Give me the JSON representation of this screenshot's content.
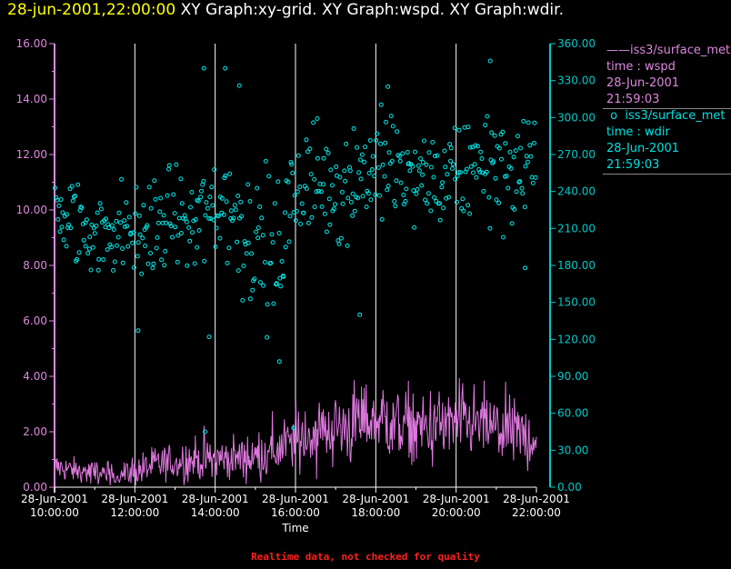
{
  "header": {
    "timestamp": "28-jun-2001,22:00:00",
    "graphs": "XY Graph:xy-grid.  XY Graph:wspd.  XY Graph:wdir."
  },
  "legend": {
    "wspd": {
      "name": "iss3/surface_met",
      "field": "time : wspd",
      "date": "28-Jun-2001",
      "time": "21:59:03"
    },
    "wdir": {
      "name": "iss3/surface_met",
      "field": "time : wdir",
      "date": "28-Jun-2001",
      "time": "21:59:03"
    }
  },
  "footer": {
    "note": "Realtime data, not checked for quality"
  },
  "colors": {
    "wspd": "#dd77dd",
    "wdir": "#00e8e8",
    "left_axis": "#dd88dd",
    "right_axis": "#00c8c8",
    "grid": "#ffffff"
  },
  "chart_data": {
    "type": "line",
    "xlabel": "Time",
    "x_ticks": [
      {
        "date": "28-Jun-2001",
        "time": "10:00:00"
      },
      {
        "date": "28-Jun-2001",
        "time": "12:00:00"
      },
      {
        "date": "28-Jun-2001",
        "time": "14:00:00"
      },
      {
        "date": "28-Jun-2001",
        "time": "16:00:00"
      },
      {
        "date": "28-Jun-2001",
        "time": "18:00:00"
      },
      {
        "date": "28-Jun-2001",
        "time": "20:00:00"
      },
      {
        "date": "28-Jun-2001",
        "time": "22:00:00"
      }
    ],
    "xlim_hours": [
      10,
      22
    ],
    "grid_vertical": true,
    "y_left": {
      "series": "wspd",
      "ylim": [
        0,
        16
      ],
      "ticks": [
        "0.00",
        "2.00",
        "4.00",
        "6.00",
        "8.00",
        "10.00",
        "12.00",
        "14.00",
        "16.00"
      ]
    },
    "y_right": {
      "series": "wdir",
      "ylim": [
        0,
        360
      ],
      "ticks": [
        "0.00",
        "30.00",
        "60.00",
        "90.00",
        "120.00",
        "150.00",
        "180.00",
        "210.00",
        "240.00",
        "270.00",
        "300.00",
        "330.00",
        "360.00"
      ]
    },
    "series": [
      {
        "name": "wspd",
        "style": "line",
        "axis": "left",
        "hours": [
          10.0,
          10.5,
          11.0,
          11.5,
          12.0,
          12.5,
          13.0,
          13.5,
          14.0,
          14.5,
          15.0,
          15.5,
          16.0,
          16.5,
          17.0,
          17.5,
          18.0,
          18.5,
          19.0,
          19.5,
          20.0,
          20.5,
          21.0,
          21.5,
          22.0
        ],
        "mean": [
          0.75,
          0.6,
          0.5,
          0.45,
          0.55,
          0.8,
          0.9,
          1.0,
          1.0,
          1.05,
          1.1,
          1.3,
          1.7,
          2.0,
          2.1,
          2.3,
          2.5,
          2.3,
          2.1,
          2.2,
          2.3,
          2.3,
          2.1,
          1.9,
          1.8
        ],
        "spread": [
          0.35,
          0.3,
          0.3,
          0.3,
          0.4,
          0.45,
          0.5,
          0.55,
          0.55,
          0.6,
          0.6,
          0.7,
          0.8,
          0.9,
          0.9,
          1.0,
          1.0,
          0.95,
          0.9,
          0.9,
          0.9,
          0.9,
          0.85,
          0.8,
          0.8
        ],
        "samples": 720
      },
      {
        "name": "wdir",
        "style": "scatter",
        "axis": "right",
        "hours": [
          10.0,
          10.5,
          11.0,
          11.5,
          12.0,
          12.5,
          13.0,
          13.5,
          14.0,
          14.5,
          15.0,
          15.5,
          16.0,
          16.5,
          17.0,
          17.5,
          18.0,
          18.5,
          19.0,
          19.5,
          20.0,
          20.5,
          21.0,
          21.5,
          22.0
        ],
        "mean": [
          218,
          212,
          205,
          210,
          205,
          212,
          218,
          212,
          228,
          222,
          200,
          180,
          240,
          250,
          245,
          252,
          262,
          255,
          250,
          248,
          245,
          268,
          262,
          252,
          258
        ],
        "spread": [
          22,
          22,
          22,
          24,
          25,
          24,
          25,
          28,
          30,
          32,
          40,
          35,
          30,
          30,
          30,
          30,
          28,
          26,
          24,
          24,
          24,
          26,
          28,
          26,
          24
        ],
        "samples": 480,
        "outliers": [
          {
            "hour": 13.72,
            "value": 340
          },
          {
            "hour": 14.25,
            "value": 340
          },
          {
            "hour": 14.6,
            "value": 326
          },
          {
            "hour": 20.85,
            "value": 346
          },
          {
            "hour": 18.3,
            "value": 325
          },
          {
            "hour": 15.6,
            "value": 102
          },
          {
            "hour": 13.85,
            "value": 122
          },
          {
            "hour": 12.08,
            "value": 127
          },
          {
            "hour": 17.6,
            "value": 140
          },
          {
            "hour": 15.95,
            "value": 48
          },
          {
            "hour": 13.75,
            "value": 45
          },
          {
            "hour": 21.72,
            "value": 178
          }
        ]
      }
    ]
  }
}
